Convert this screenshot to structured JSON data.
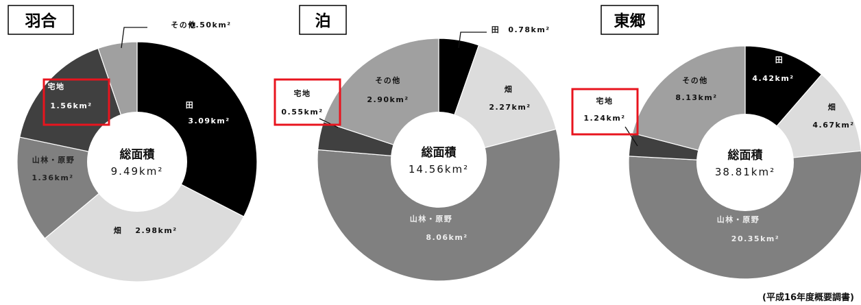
{
  "chart_data": [
    {
      "type": "pie",
      "title": "羽合",
      "center_title": "総面積",
      "center_value": "9.49km²",
      "total": 9.49,
      "slices": [
        {
          "name": "田",
          "value": 3.09,
          "label": "3.09km²",
          "color": "#000000"
        },
        {
          "name": "畑",
          "value": 2.98,
          "label": "2.98km²",
          "color": "#dcdcdc"
        },
        {
          "name": "山林・原野",
          "value": 1.36,
          "label": "1.36km²",
          "color": "#808080"
        },
        {
          "name": "宅地",
          "value": 1.56,
          "label": "1.56km²",
          "color": "#404040",
          "highlight": true
        },
        {
          "name": "その他",
          "value": 0.5,
          "label": "0.50km²",
          "color": "#a0a0a0"
        }
      ]
    },
    {
      "type": "pie",
      "title": "泊",
      "center_title": "総面積",
      "center_value": "14.56km²",
      "total": 14.56,
      "slices": [
        {
          "name": "田",
          "value": 0.78,
          "label": "0.78km²",
          "color": "#000000"
        },
        {
          "name": "畑",
          "value": 2.27,
          "label": "2.27km²",
          "color": "#dcdcdc"
        },
        {
          "name": "山林・原野",
          "value": 8.06,
          "label": "8.06km²",
          "color": "#808080"
        },
        {
          "name": "宅地",
          "value": 0.55,
          "label": "0.55km²",
          "color": "#404040",
          "highlight": true
        },
        {
          "name": "その他",
          "value": 2.9,
          "label": "2.90km²",
          "color": "#a0a0a0"
        }
      ]
    },
    {
      "type": "pie",
      "title": "東郷",
      "center_title": "総面積",
      "center_value": "38.81km²",
      "total": 38.81,
      "slices": [
        {
          "name": "田",
          "value": 4.42,
          "label": "4.42km²",
          "color": "#000000"
        },
        {
          "name": "畑",
          "value": 4.67,
          "label": "4.67km²",
          "color": "#dcdcdc"
        },
        {
          "name": "山林・原野",
          "value": 20.35,
          "label": "20.35km²",
          "color": "#808080"
        },
        {
          "name": "宅地",
          "value": 1.24,
          "label": "1.24km²",
          "color": "#404040",
          "highlight": true
        },
        {
          "name": "その他",
          "value": 8.13,
          "label": "8.13km²",
          "color": "#a0a0a0"
        }
      ]
    }
  ],
  "source_note": "(平成16年度概要調書)",
  "highlight_color": "#e8141e"
}
